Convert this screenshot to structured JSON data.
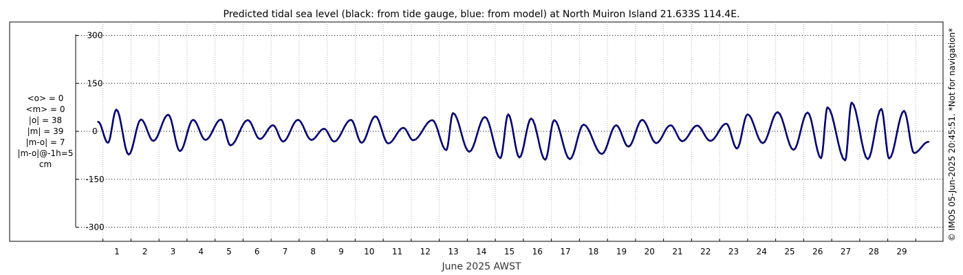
{
  "chart_data": {
    "type": "line",
    "title": "Predicted tidal sea level (black: from tide gauge, blue: from model) at North Muiron Island 21.633S 114.4E.",
    "xlabel": "June 2025 AWST",
    "ylabel": "",
    "x_unit": "days",
    "xlim": [
      -0.6,
      30.0
    ],
    "ylim": [
      -330,
      330
    ],
    "yticks": [
      300,
      150,
      0,
      -150,
      -300
    ],
    "ytick_labels": [
      "300",
      "150",
      "0",
      "-150",
      "-300"
    ],
    "xticks": [
      1,
      2,
      3,
      4,
      5,
      6,
      7,
      8,
      9,
      10,
      11,
      12,
      13,
      14,
      15,
      16,
      17,
      18,
      19,
      20,
      21,
      22,
      23,
      24,
      25,
      26,
      27,
      28,
      29
    ],
    "xtick_labels": [
      "1",
      "2",
      "3",
      "4",
      "5",
      "6",
      "7",
      "8",
      "9",
      "10",
      "11",
      "12",
      "13",
      "14",
      "15",
      "16",
      "17",
      "18",
      "19",
      "20",
      "21",
      "22",
      "23",
      "24",
      "25",
      "26",
      "27",
      "28",
      "29"
    ],
    "grid": true,
    "series": [
      {
        "name": "from tide gauge",
        "color": "#000000",
        "start_day": 0.33,
        "end_day": 29.95,
        "peaks": [
          [
            0.33,
            30
          ],
          [
            0.68,
            -36
          ],
          [
            0.98,
            68
          ],
          [
            1.42,
            -73
          ],
          [
            1.86,
            37
          ],
          [
            2.3,
            -30
          ],
          [
            2.83,
            52
          ],
          [
            3.25,
            -62
          ],
          [
            3.72,
            36
          ],
          [
            4.16,
            -27
          ],
          [
            4.71,
            37
          ],
          [
            5.05,
            -44
          ],
          [
            5.67,
            35
          ],
          [
            6.1,
            -24
          ],
          [
            6.57,
            19
          ],
          [
            6.93,
            -32
          ],
          [
            7.46,
            36
          ],
          [
            7.94,
            -27
          ],
          [
            8.39,
            8
          ],
          [
            8.75,
            -32
          ],
          [
            9.35,
            36
          ],
          [
            9.73,
            -36
          ],
          [
            10.22,
            47
          ],
          [
            10.68,
            -38
          ],
          [
            11.22,
            11
          ],
          [
            11.57,
            -28
          ],
          [
            12.25,
            35
          ],
          [
            12.75,
            -59
          ],
          [
            12.99,
            57
          ],
          [
            13.57,
            -64
          ],
          [
            14.13,
            45
          ],
          [
            14.68,
            -84
          ],
          [
            14.96,
            53
          ],
          [
            15.36,
            -82
          ],
          [
            15.78,
            40
          ],
          [
            16.28,
            -89
          ],
          [
            16.6,
            35
          ],
          [
            17.16,
            -87
          ],
          [
            17.65,
            21
          ],
          [
            18.3,
            -71
          ],
          [
            18.81,
            19
          ],
          [
            19.25,
            -48
          ],
          [
            19.74,
            36
          ],
          [
            20.24,
            -37
          ],
          [
            20.75,
            19
          ],
          [
            21.17,
            -31
          ],
          [
            21.7,
            18
          ],
          [
            22.17,
            -30
          ],
          [
            22.74,
            24
          ],
          [
            23.12,
            -54
          ],
          [
            23.5,
            53
          ],
          [
            24.04,
            -37
          ],
          [
            24.57,
            60
          ],
          [
            25.14,
            -58
          ],
          [
            25.64,
            59
          ],
          [
            26.12,
            -84
          ],
          [
            26.35,
            75
          ],
          [
            26.98,
            -91
          ],
          [
            27.21,
            90
          ],
          [
            27.79,
            -87
          ],
          [
            28.27,
            70
          ],
          [
            28.55,
            -85
          ],
          [
            29.08,
            64
          ],
          [
            29.44,
            -68
          ],
          [
            29.95,
            -33
          ]
        ]
      },
      {
        "name": "from model",
        "color": "#0000cc",
        "start_day": 0.33,
        "end_day": 29.95,
        "peaks": [
          [
            0.33,
            30
          ],
          [
            0.68,
            -36
          ],
          [
            0.98,
            68
          ],
          [
            1.42,
            -73
          ],
          [
            1.86,
            37
          ],
          [
            2.3,
            -30
          ],
          [
            2.83,
            52
          ],
          [
            3.25,
            -62
          ],
          [
            3.72,
            36
          ],
          [
            4.16,
            -27
          ],
          [
            4.71,
            37
          ],
          [
            5.05,
            -44
          ],
          [
            5.67,
            35
          ],
          [
            6.1,
            -24
          ],
          [
            6.57,
            19
          ],
          [
            6.93,
            -32
          ],
          [
            7.46,
            36
          ],
          [
            7.94,
            -27
          ],
          [
            8.39,
            8
          ],
          [
            8.75,
            -32
          ],
          [
            9.35,
            36
          ],
          [
            9.73,
            -36
          ],
          [
            10.22,
            47
          ],
          [
            10.68,
            -38
          ],
          [
            11.22,
            11
          ],
          [
            11.57,
            -28
          ],
          [
            12.25,
            35
          ],
          [
            12.75,
            -59
          ],
          [
            12.99,
            57
          ],
          [
            13.57,
            -64
          ],
          [
            14.13,
            45
          ],
          [
            14.68,
            -84
          ],
          [
            14.96,
            53
          ],
          [
            15.36,
            -82
          ],
          [
            15.78,
            40
          ],
          [
            16.28,
            -89
          ],
          [
            16.6,
            35
          ],
          [
            17.16,
            -87
          ],
          [
            17.65,
            21
          ],
          [
            18.3,
            -71
          ],
          [
            18.81,
            19
          ],
          [
            19.25,
            -48
          ],
          [
            19.74,
            36
          ],
          [
            20.24,
            -37
          ],
          [
            20.75,
            19
          ],
          [
            21.17,
            -31
          ],
          [
            21.7,
            18
          ],
          [
            22.17,
            -30
          ],
          [
            22.74,
            24
          ],
          [
            23.12,
            -54
          ],
          [
            23.5,
            53
          ],
          [
            24.04,
            -37
          ],
          [
            24.57,
            60
          ],
          [
            25.14,
            -58
          ],
          [
            25.64,
            59
          ],
          [
            26.12,
            -84
          ],
          [
            26.35,
            75
          ],
          [
            26.98,
            -91
          ],
          [
            27.21,
            90
          ],
          [
            27.79,
            -87
          ],
          [
            28.27,
            70
          ],
          [
            28.55,
            -85
          ],
          [
            29.08,
            64
          ],
          [
            29.44,
            -68
          ],
          [
            29.95,
            -33
          ]
        ]
      }
    ],
    "annotations": {
      "stats": [
        "<o> = 0",
        "<m> = 0",
        "|o| = 38",
        "|m| = 39",
        "|m-o| = 7",
        "|m-o|@-1h=5",
        "cm"
      ],
      "copyright": "© IMOS 05-Jun-2025 20:45:51. *Not for navigation*"
    }
  }
}
